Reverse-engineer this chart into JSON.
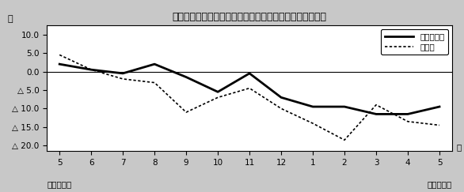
{
  "title": "第２図　所定外労働時間対前年比の推移（規模５人以上）",
  "x_labels": [
    "5",
    "6",
    "7",
    "8",
    "9",
    "10",
    "11",
    "12",
    "1",
    "2",
    "3",
    "4",
    "5"
  ],
  "x_bottom_left": "平成１９年",
  "x_bottom_right": "平成２０年",
  "ylabel": "％",
  "xlabel_right": "月",
  "ytick_vals": [
    10.0,
    5.0,
    0.0,
    -5.0,
    -10.0,
    -15.0,
    -20.0
  ],
  "ytick_labels": [
    "10.0",
    "5.0",
    "0.0",
    "△ 5.0",
    "△ 10.0",
    "△ 15.0",
    "△ 20.0"
  ],
  "series_total": {
    "label": "調査産業計",
    "linewidth": 2.0,
    "values": [
      2.0,
      0.5,
      -0.5,
      2.0,
      -1.5,
      -5.5,
      -0.5,
      -7.0,
      -9.5,
      -9.5,
      -11.5,
      -11.5,
      -9.5
    ]
  },
  "series_mfg": {
    "label": "製造業",
    "linewidth": 1.2,
    "values": [
      4.5,
      0.5,
      -2.0,
      -3.0,
      -11.0,
      -7.0,
      -4.5,
      -10.0,
      -14.0,
      -18.5,
      -9.0,
      -13.5,
      -14.5
    ]
  },
  "background_color": "#ffffff",
  "fig_background": "#c8c8c8",
  "border_color": "#000000"
}
